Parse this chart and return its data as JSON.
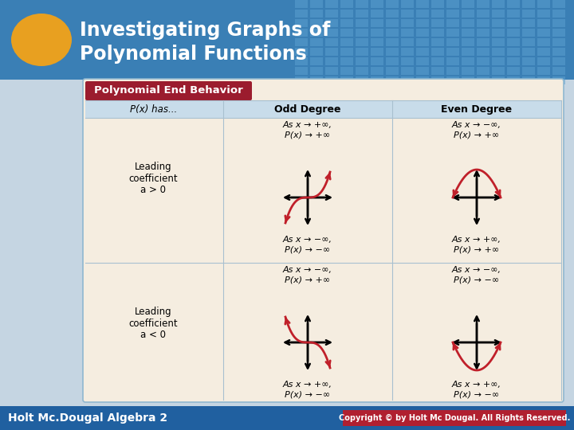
{
  "title_line1": "Investigating Graphs of",
  "title_line2": "Polynomial Functions",
  "oval_color": "#e8a020",
  "table_title": "Polynomial End Behavior",
  "table_title_bg": "#9b1c2e",
  "header_bg": "#c8dcea",
  "table_bg": "#f5ede0",
  "col_headers": [
    "P(x) has...",
    "Odd Degree",
    "Even Degree"
  ],
  "row1_label": [
    "Leading",
    "coefficient",
    "a > 0"
  ],
  "row2_label": [
    "Leading",
    "coefficient",
    "a < 0"
  ],
  "cell_odd_pos_top1": "As x → +∞,",
  "cell_odd_pos_top2": "P(x) → +∞",
  "cell_odd_pos_bot1": "As x → −∞,",
  "cell_odd_pos_bot2": "P(x) → −∞",
  "cell_even_pos_top1": "As x → −∞,",
  "cell_even_pos_top2": "P(x) → +∞",
  "cell_even_pos_bot1": "As x → +∞,",
  "cell_even_pos_bot2": "P(x) → +∞",
  "cell_odd_neg_top1": "As x → −∞,",
  "cell_odd_neg_top2": "P(x) → +∞",
  "cell_odd_neg_bot1": "As x → +∞,",
  "cell_odd_neg_bot2": "P(x) → −∞",
  "cell_even_neg_top1": "As x → −∞,",
  "cell_even_neg_top2": "P(x) → −∞",
  "cell_even_neg_bot1": "As x → +∞,",
  "cell_even_neg_bot2": "P(x) → −∞",
  "curve_color": "#c0202a",
  "bg_color": "#c5d5e2",
  "footer_left": "Holt Mc.Dougal Algebra 2",
  "footer_right": "Copyright © by Holt Mc Dougal. All Rights Reserved.",
  "header_blue": "#3a7fb5",
  "grid_blue": "#5a9fcf",
  "footer_blue": "#2060a0"
}
